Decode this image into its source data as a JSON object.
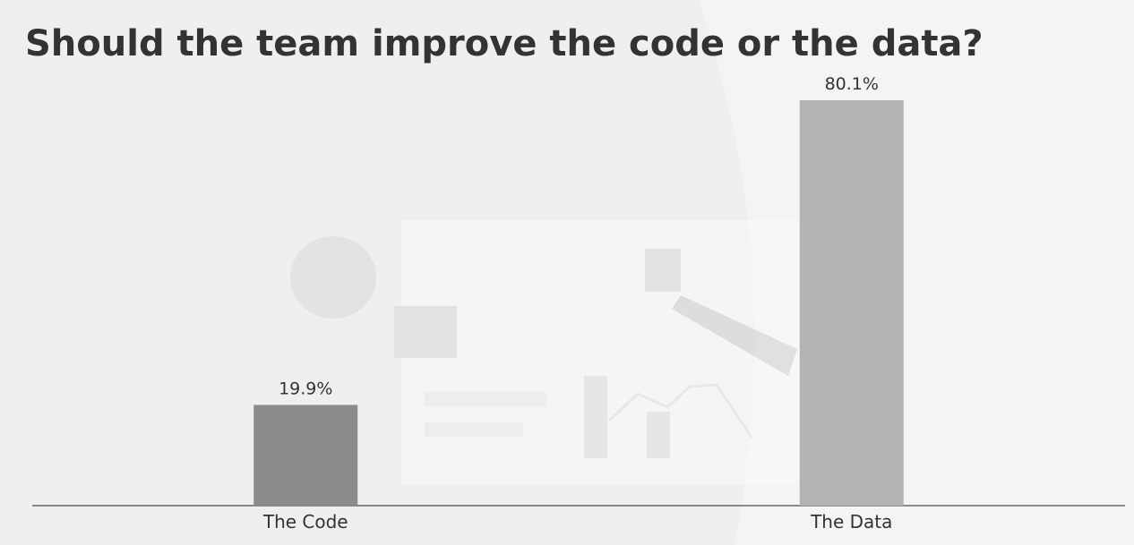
{
  "chart_data": {
    "type": "bar",
    "title": "Should the team improve the code or the data?",
    "categories": [
      "The Code",
      "The Data"
    ],
    "values": [
      19.9,
      80.1
    ],
    "value_labels": [
      "19.9%",
      "80.1%"
    ],
    "colors": [
      "#8c8c8c",
      "#b3b3b3"
    ]
  }
}
